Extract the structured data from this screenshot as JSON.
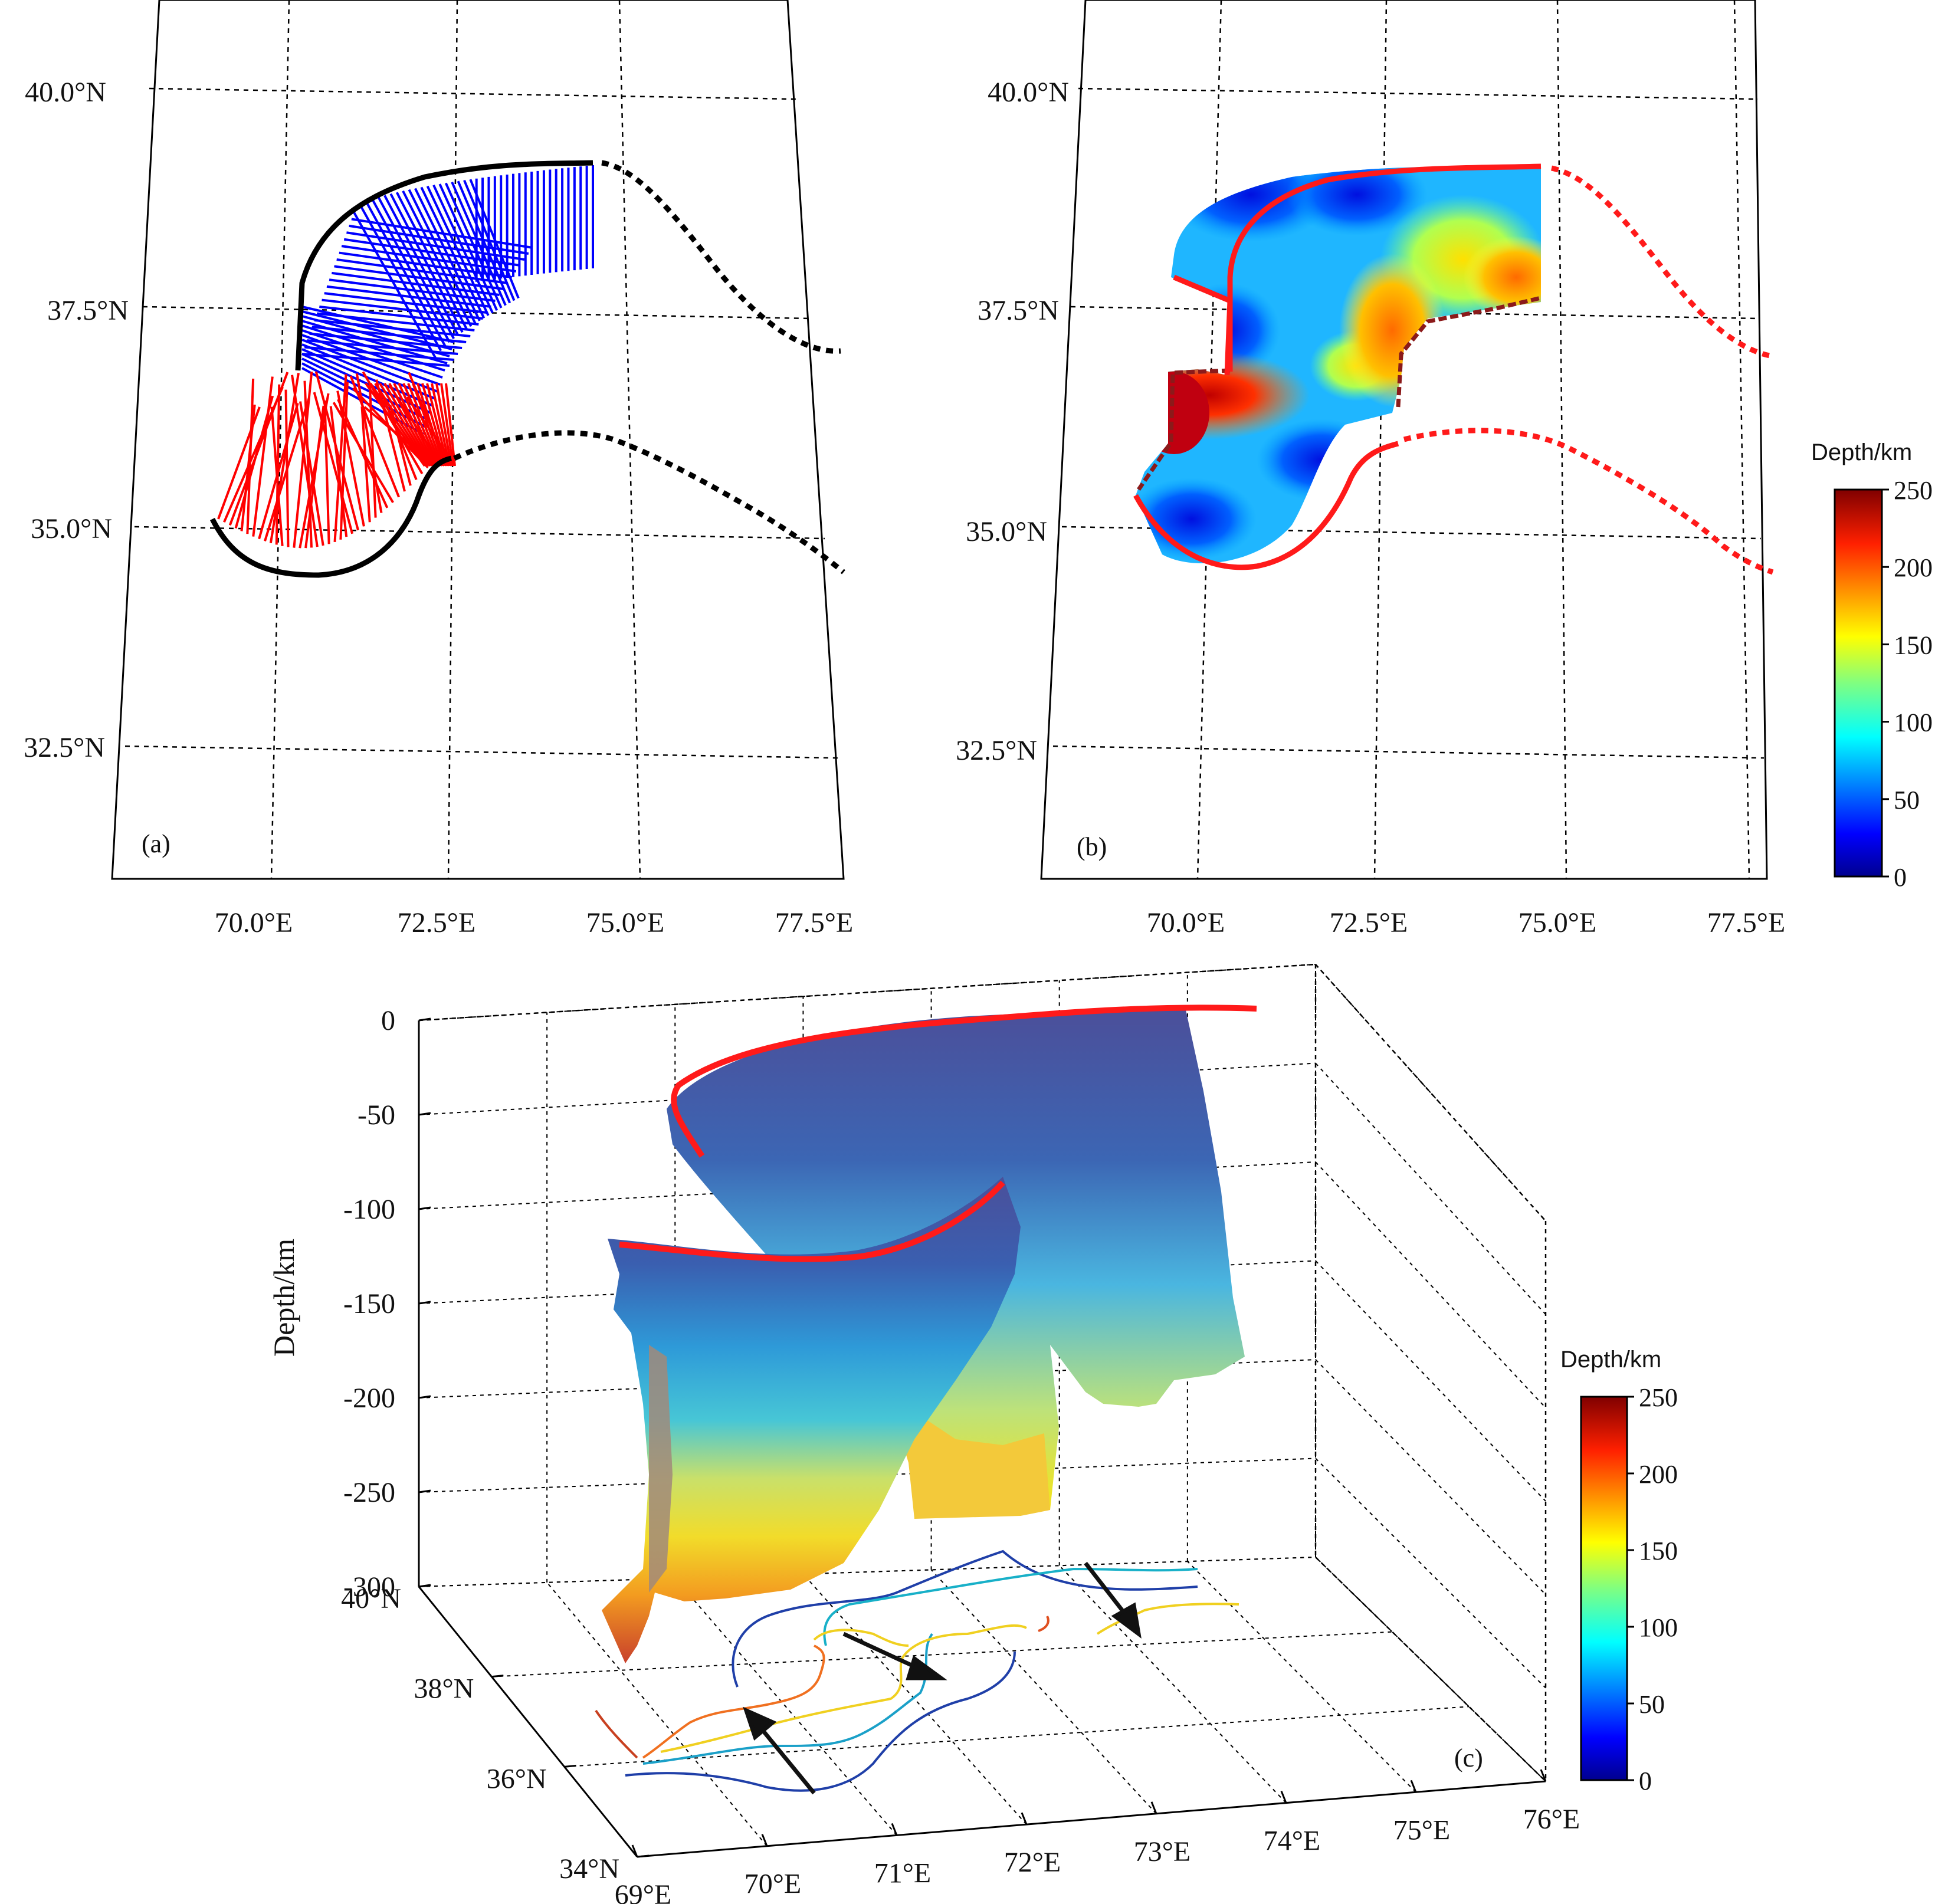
{
  "chart_data": [
    {
      "panel": "(a)",
      "type": "map",
      "xticks": [
        "70.0°E",
        "72.5°E",
        "75.0°E",
        "77.5°E"
      ],
      "yticks": [
        "40.0°N",
        "37.5°N",
        "35.0°N",
        "32.5°N"
      ],
      "colors": {
        "north_profiles": "#0000ff",
        "south_profiles": "#ff0000",
        "front": "#000000"
      }
    },
    {
      "panel": "(b)",
      "type": "heatmap",
      "xticks": [
        "70.0°E",
        "72.5°E",
        "75.0°E",
        "77.5°E"
      ],
      "yticks": [
        "40.0°N",
        "37.5°N",
        "35.0°N",
        "32.5°N"
      ],
      "colorbar": {
        "title": "Depth/km",
        "ticks": [
          "250",
          "200",
          "150",
          "100",
          "50",
          "0"
        ],
        "range": [
          0,
          250
        ]
      },
      "colors": {
        "front": "#ff1a1a",
        "slab_edge": "#8b1a1a"
      }
    },
    {
      "panel": "(c)",
      "type": "surface3d",
      "zlabel": "Depth/km",
      "zticks": [
        "0",
        "-50",
        "-100",
        "-150",
        "-200",
        "-250",
        "-300"
      ],
      "zlim": [
        -300,
        0
      ],
      "lon_ticks": [
        "69°E",
        "70°E",
        "71°E",
        "72°E",
        "73°E",
        "74°E",
        "75°E",
        "76°E"
      ],
      "lat_ticks": [
        "40°N",
        "38°N",
        "36°N",
        "34°N"
      ],
      "colorbar": {
        "title": "Depth/km",
        "ticks": [
          "250",
          "200",
          "150",
          "100",
          "50",
          "0"
        ],
        "range": [
          0,
          250
        ]
      }
    }
  ]
}
